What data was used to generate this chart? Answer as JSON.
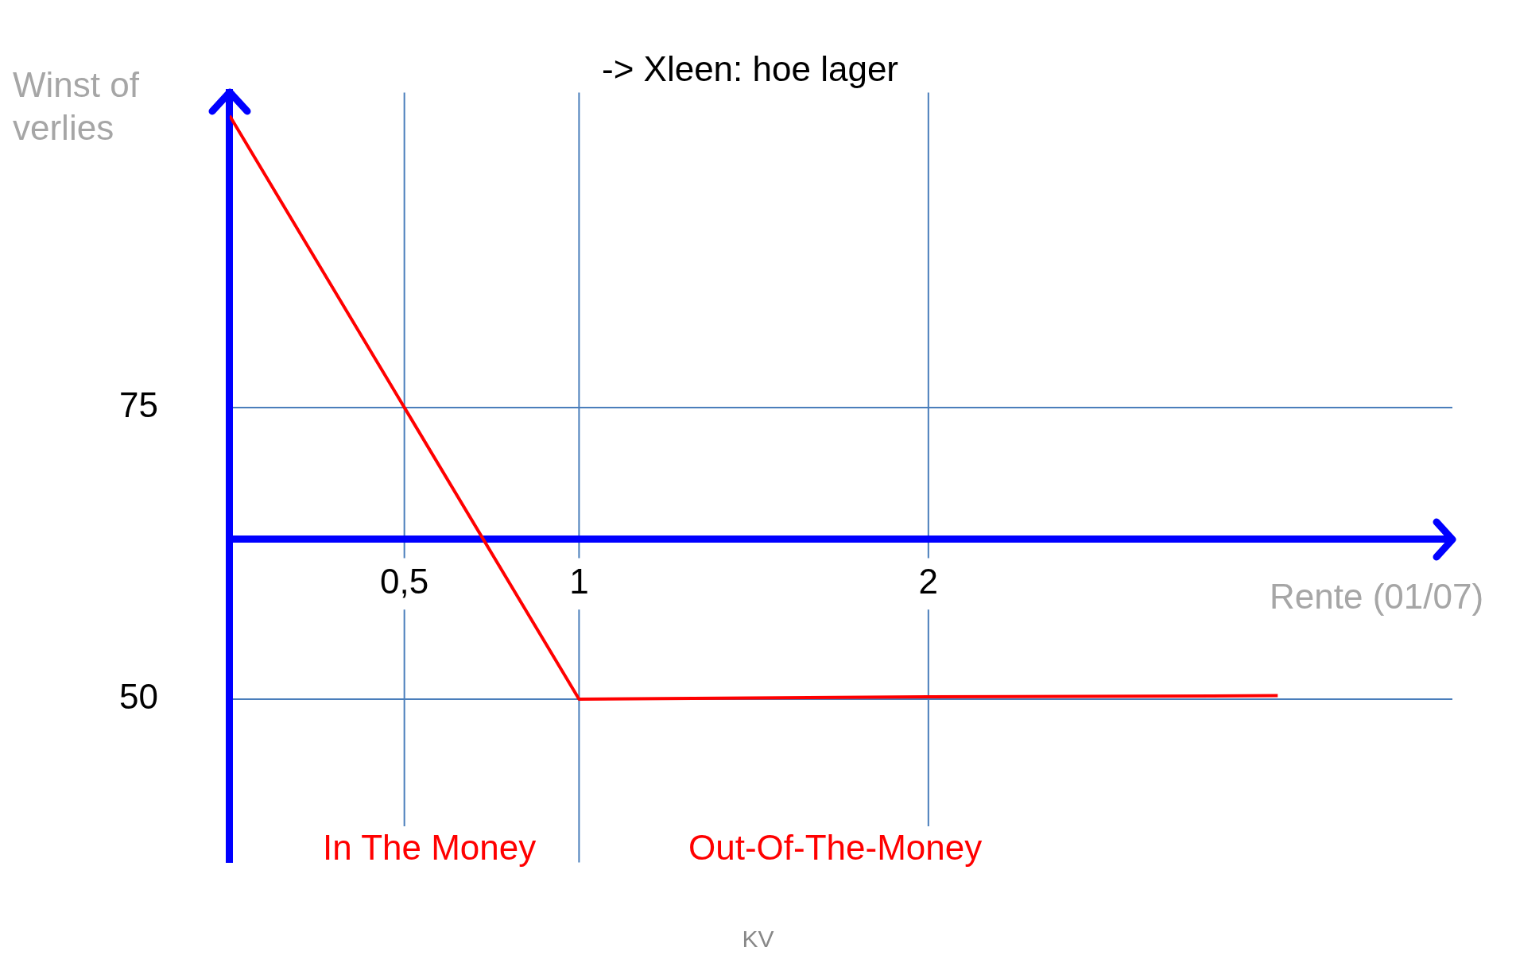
{
  "chart_data": {
    "type": "line",
    "title": "-> Xleen: hoe lager",
    "xlabel": "Rente (01/07)",
    "ylabel": "Winst of verlies",
    "x": [
      0,
      0.5,
      1,
      2,
      3
    ],
    "xlim": [
      0,
      3.5
    ],
    "xticks": [
      {
        "value": 0.5,
        "label": "0,5"
      },
      1,
      2
    ],
    "ylim": [
      36,
      102
    ],
    "yticks": [
      50,
      75
    ],
    "series": [
      {
        "color": "#ff0000",
        "values": [
          100,
          75,
          50,
          50.2,
          50.3
        ]
      }
    ],
    "ref_lines": [
      {
        "axis": "y",
        "value": 75,
        "color": "#4a7ebb"
      },
      {
        "axis": "y",
        "value": 50,
        "color": "#4a7ebb"
      },
      {
        "axis": "x",
        "value": 0.5,
        "color": "#4a7ebb"
      },
      {
        "axis": "x",
        "value": 1,
        "color": "#4a7ebb"
      },
      {
        "axis": "x",
        "value": 2,
        "color": "#4a7ebb"
      }
    ],
    "annotations": [
      "In The Money",
      "Out-Of-The-Money",
      "KV"
    ],
    "grid": false,
    "legend": false,
    "marker": "none",
    "line_style": "solid"
  }
}
